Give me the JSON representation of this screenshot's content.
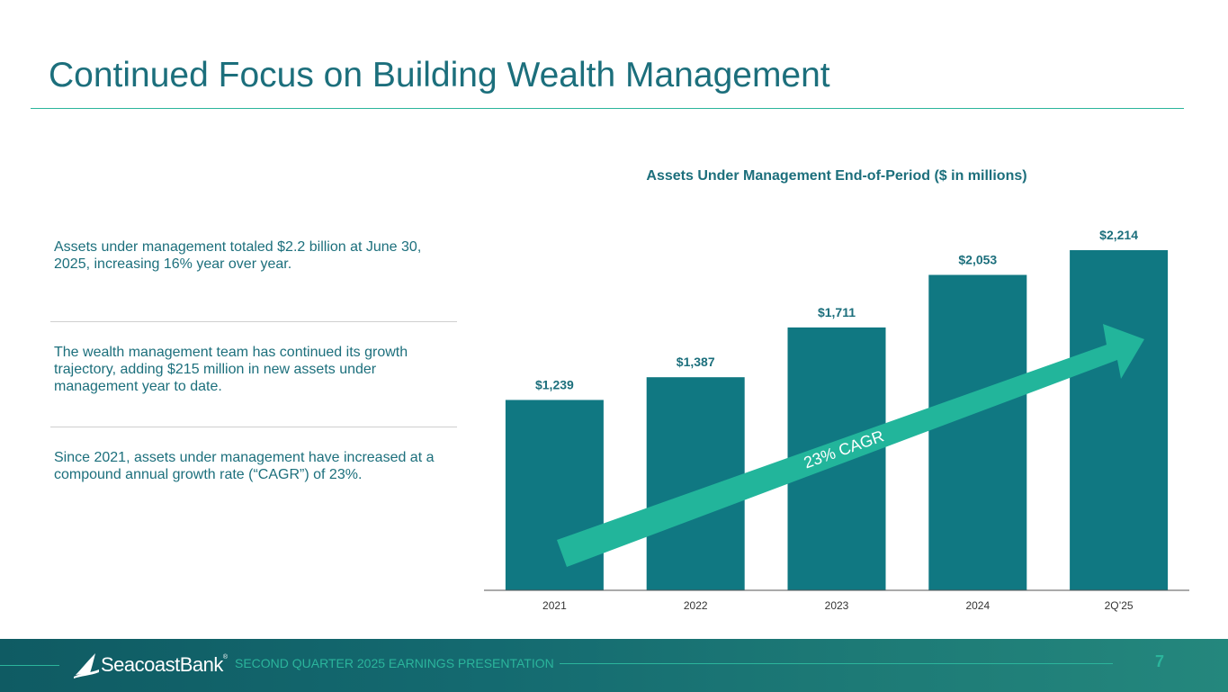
{
  "slide": {
    "title": "Continued Focus on Building Wealth Management"
  },
  "bullets": [
    "Assets under management totaled $2.2 billion at June 30, 2025, increasing 16% year over year.",
    "The wealth management team has continued its growth trajectory, adding $215 million in new assets under management year to date.",
    "Since 2021, assets under management have increased at a compound annual growth rate (“CAGR”) of 23%."
  ],
  "chart_data": {
    "type": "bar",
    "title": "Assets Under Management End-of-Period ($ in millions)",
    "categories": [
      "2021",
      "2022",
      "2023",
      "2024",
      "2Q’25"
    ],
    "values": [
      1239,
      1387,
      1711,
      2053,
      2214
    ],
    "data_labels": [
      "$1,239",
      "$1,387",
      "$1,711",
      "$2,053",
      "$2,214"
    ],
    "ylim": [
      0,
      2214
    ],
    "grid": false,
    "annotation": "23% CAGR",
    "colors": {
      "bar": "#107882",
      "arrow": "#22b59b",
      "axis": "#555555"
    }
  },
  "footer": {
    "brand": "SeacoastBank",
    "registered_mark": "®",
    "presentation_title": "SECOND QUARTER 2025 EARNINGS PRESENTATION",
    "page_number": "7"
  },
  "colors": {
    "title": "#1c6f7c",
    "accent": "#2bb59c"
  }
}
